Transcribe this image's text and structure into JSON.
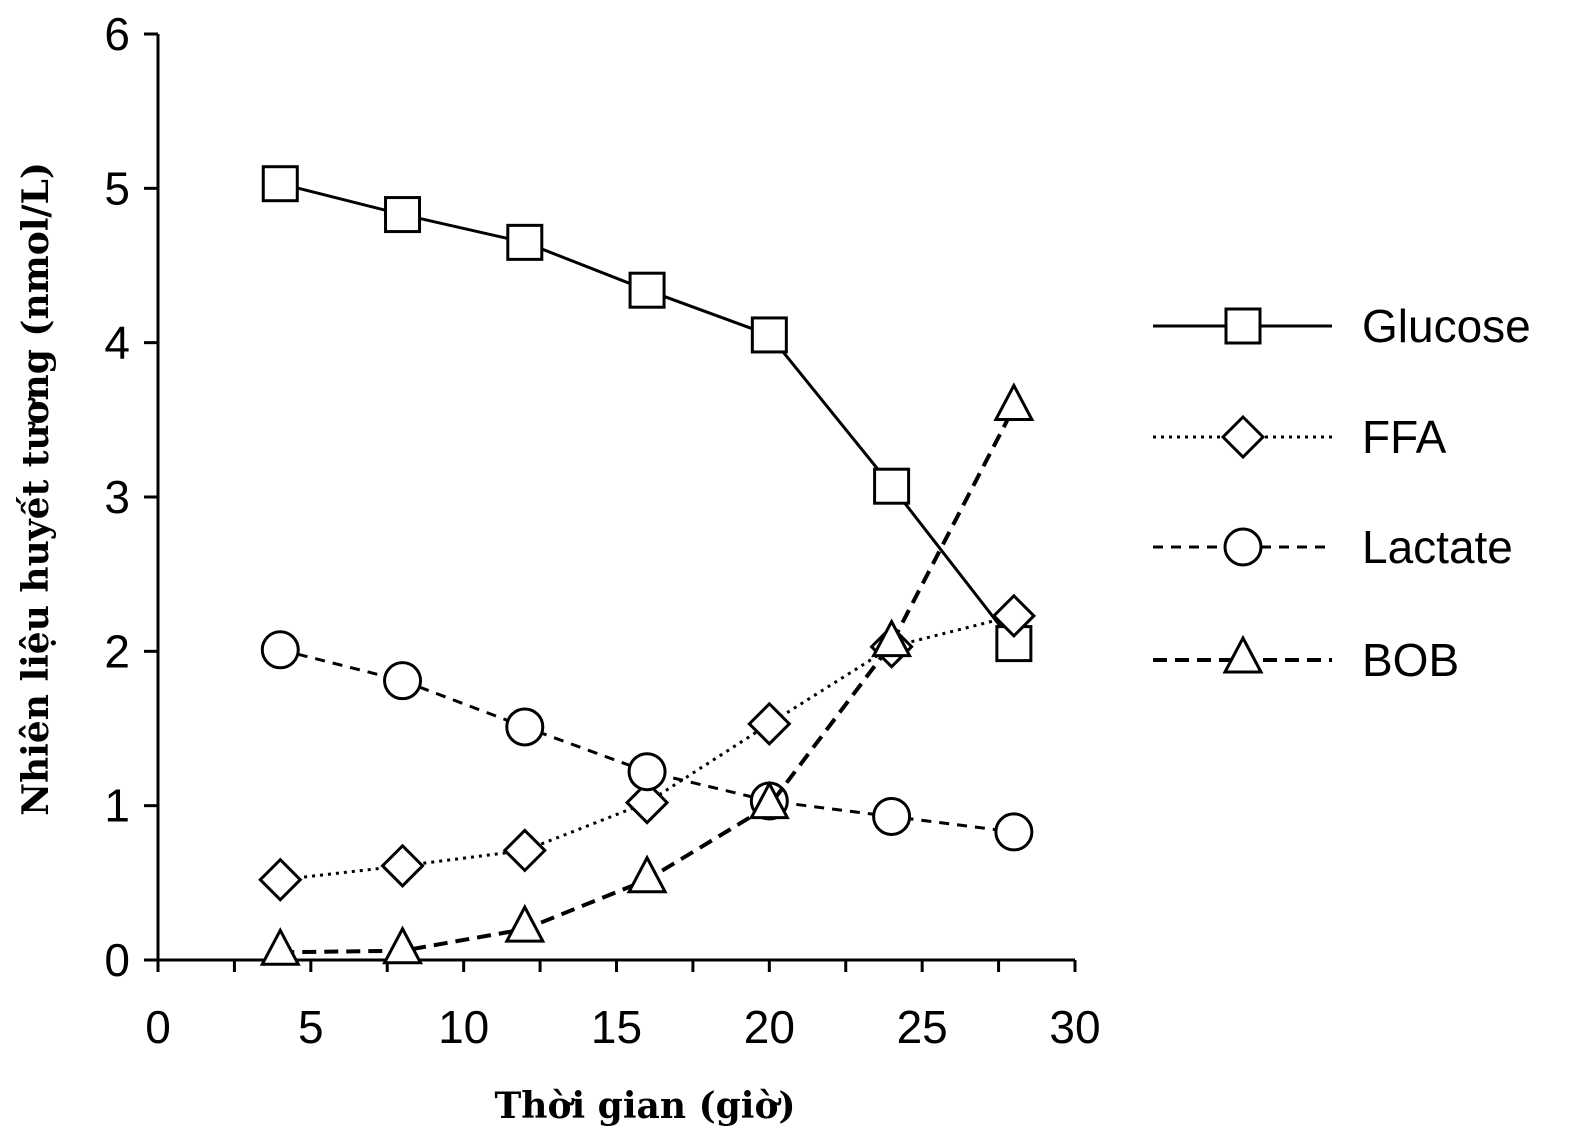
{
  "chart_data": {
    "type": "line",
    "title": "",
    "xlabel": "Thời gian (giờ)",
    "ylabel": "Nhiên liệu huyết tương (nmol/L)",
    "xlim": [
      0,
      30
    ],
    "ylim": [
      0,
      6
    ],
    "xticks": [
      0,
      5,
      10,
      15,
      20,
      25,
      30
    ],
    "yticks": [
      0,
      1,
      2,
      3,
      4,
      5,
      6
    ],
    "grid": false,
    "legend_position": "right",
    "x": [
      4,
      8,
      12,
      16,
      20,
      24,
      28
    ],
    "series": [
      {
        "name": "Glucose",
        "values": [
          5.03,
          4.83,
          4.65,
          4.34,
          4.05,
          3.07,
          2.05
        ],
        "marker": "square",
        "line": "solid"
      },
      {
        "name": "FFA",
        "values": [
          0.52,
          0.61,
          0.71,
          1.02,
          1.53,
          2.03,
          2.23
        ],
        "marker": "diamond",
        "line": "dotted"
      },
      {
        "name": "Lactate",
        "values": [
          2.01,
          1.81,
          1.51,
          1.22,
          1.03,
          0.93,
          0.83
        ],
        "marker": "circle",
        "line": "dashed"
      },
      {
        "name": "BOB",
        "values": [
          0.05,
          0.06,
          0.2,
          0.52,
          1.0,
          2.05,
          3.58
        ],
        "marker": "triangle",
        "line": "longdash"
      }
    ]
  }
}
